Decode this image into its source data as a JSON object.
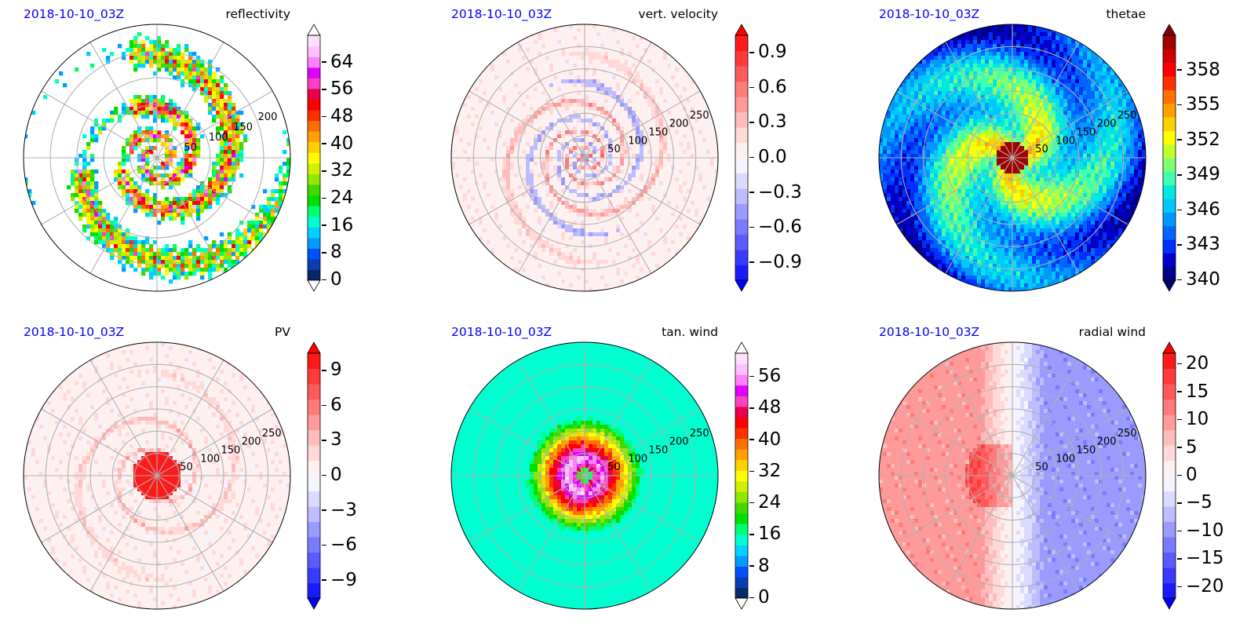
{
  "panels": [
    {
      "date": "2018-10-10_03Z",
      "title": "reflectivity",
      "kind": "reflectivity",
      "colorbar": {
        "vmin": 0,
        "vmax": 72,
        "ticks": [
          "0",
          "8",
          "16",
          "24",
          "32",
          "40",
          "48",
          "56",
          "64"
        ],
        "tick_values": [
          0,
          8,
          16,
          24,
          32,
          40,
          48,
          56,
          64
        ],
        "colors": [
          "#06286a",
          "#0a3cb4",
          "#0050ff",
          "#009cff",
          "#00d0ff",
          "#00ffd0",
          "#00ff70",
          "#00e000",
          "#40d800",
          "#90e800",
          "#d0f000",
          "#ffff00",
          "#ffd000",
          "#ffa000",
          "#ff7000",
          "#ff3000",
          "#ff0000",
          "#e8004a",
          "#ff40c0",
          "#e000ff",
          "#ff80ff",
          "#ffc0ff",
          "#ffe0ff"
        ],
        "extend_colors": {
          "low": "#ffffff",
          "high": "#ffffff"
        }
      },
      "radial_labels": [
        "50",
        "100",
        "150",
        "200"
      ]
    },
    {
      "date": "2018-10-10_03Z",
      "title": "vert. velocity",
      "kind": "vertvel",
      "colorbar": {
        "vmin": -1.05,
        "vmax": 1.05,
        "ticks": [
          "−0.9",
          "−0.6",
          "−0.3",
          "0.0",
          "0.3",
          "0.6",
          "0.9"
        ],
        "tick_values": [
          -0.9,
          -0.6,
          -0.3,
          0,
          0.3,
          0.6,
          0.9
        ],
        "colors": [
          "#1a1aff",
          "#3a3aff",
          "#5a5aff",
          "#7a7aff",
          "#9a9aff",
          "#bcbcff",
          "#dadaff",
          "#f4f4ff",
          "#fff0f0",
          "#ffd8d8",
          "#ffbcbc",
          "#ff9a9a",
          "#ff7a7a",
          "#ff5a5a",
          "#ff3a3a",
          "#ff1a1a"
        ],
        "extend_colors": {
          "low": "#0000ff",
          "high": "#ff0000"
        }
      },
      "radial_labels": [
        "50",
        "100",
        "150",
        "200",
        "250"
      ]
    },
    {
      "date": "2018-10-10_03Z",
      "title": "thetae",
      "kind": "thetae",
      "colorbar": {
        "vmin": 340,
        "vmax": 361,
        "ticks": [
          "340",
          "343",
          "346",
          "349",
          "352",
          "355",
          "358"
        ],
        "tick_values": [
          340,
          343,
          346,
          349,
          352,
          355,
          358
        ],
        "colors": [
          "#00008c",
          "#0000c8",
          "#0030ff",
          "#0064ff",
          "#0098ff",
          "#00c8ff",
          "#00e8e0",
          "#40ffb0",
          "#80ff70",
          "#c0ff30",
          "#ffff00",
          "#ffd000",
          "#ffa000",
          "#ff7000",
          "#ff3000",
          "#ff0000",
          "#d00000",
          "#a00000"
        ],
        "extend_colors": {
          "low": "#00006a",
          "high": "#800000"
        }
      },
      "radial_labels": [
        "50",
        "100",
        "150",
        "200",
        "250"
      ]
    },
    {
      "date": "2018-10-10_03Z",
      "title": "PV",
      "kind": "pv",
      "colorbar": {
        "vmin": -10.5,
        "vmax": 10.5,
        "ticks": [
          "−9",
          "−6",
          "−3",
          "0",
          "3",
          "6",
          "9"
        ],
        "tick_values": [
          -9,
          -6,
          -3,
          0,
          3,
          6,
          9
        ],
        "colors": [
          "#1a1aff",
          "#3a3aff",
          "#5a5aff",
          "#7a7aff",
          "#9a9aff",
          "#bcbcff",
          "#dadaff",
          "#f4f4ff",
          "#fff0f0",
          "#ffd8d8",
          "#ffbcbc",
          "#ff9a9a",
          "#ff7a7a",
          "#ff5a5a",
          "#ff3a3a",
          "#ff1a1a"
        ],
        "extend_colors": {
          "low": "#0000ff",
          "high": "#ff0000"
        }
      },
      "radial_labels": [
        "50",
        "100",
        "150",
        "200",
        "250"
      ]
    },
    {
      "date": "2018-10-10_03Z",
      "title": "tan. wind",
      "kind": "tanwind",
      "colorbar": {
        "vmin": 0,
        "vmax": 62,
        "ticks": [
          "0",
          "8",
          "16",
          "24",
          "32",
          "40",
          "48",
          "56"
        ],
        "tick_values": [
          0,
          8,
          16,
          24,
          32,
          40,
          48,
          56
        ],
        "colors": [
          "#06286a",
          "#0a3cb4",
          "#0050ff",
          "#009cff",
          "#00d0ff",
          "#00ffd0",
          "#00ff70",
          "#00e000",
          "#40d800",
          "#90e800",
          "#d0f000",
          "#ffff00",
          "#ffd000",
          "#ffa000",
          "#ff7000",
          "#ff3000",
          "#ff0000",
          "#e8004a",
          "#ff40c0",
          "#e000ff",
          "#ff80ff",
          "#ffc0ff",
          "#ffe0ff"
        ],
        "extend_colors": {
          "low": "#ffffff",
          "high": "#ffffff"
        }
      },
      "radial_labels": [
        "50",
        "100",
        "150",
        "200",
        "250"
      ]
    },
    {
      "date": "2018-10-10_03Z",
      "title": "radial wind",
      "kind": "radwind",
      "colorbar": {
        "vmin": -22,
        "vmax": 22,
        "ticks": [
          "−20",
          "−15",
          "−10",
          "−5",
          "0",
          "5",
          "10",
          "15",
          "20"
        ],
        "tick_values": [
          -20,
          -15,
          -10,
          -5,
          0,
          5,
          10,
          15,
          20
        ],
        "colors": [
          "#1a1aff",
          "#3a3aff",
          "#5a5aff",
          "#7a7aff",
          "#9a9aff",
          "#bcbcff",
          "#dadaff",
          "#f4f4ff",
          "#fff0f0",
          "#ffd8d8",
          "#ffbcbc",
          "#ff9a9a",
          "#ff7a7a",
          "#ff5a5a",
          "#ff3a3a",
          "#ff1a1a"
        ],
        "extend_colors": {
          "low": "#0000ff",
          "high": "#ff0000"
        }
      },
      "radial_labels": [
        "50",
        "100",
        "150",
        "200",
        "250"
      ]
    }
  ],
  "chart_data": [
    {
      "type": "heatmap",
      "projection": "polar",
      "title": "reflectivity",
      "subtitle": "2018-10-10_03Z",
      "radial_ticks": [
        50,
        100,
        150,
        200
      ],
      "colorbar_range": [
        0,
        72
      ],
      "colorbar_ticks": [
        0,
        8,
        16,
        24,
        32,
        40,
        48,
        56,
        64
      ],
      "grid": true
    },
    {
      "type": "heatmap",
      "projection": "polar",
      "title": "vert. velocity",
      "subtitle": "2018-10-10_03Z",
      "radial_ticks": [
        50,
        100,
        150,
        200,
        250
      ],
      "colorbar_range": [
        -1.05,
        1.05
      ],
      "colorbar_ticks": [
        -0.9,
        -0.6,
        -0.3,
        0,
        0.3,
        0.6,
        0.9
      ],
      "grid": true
    },
    {
      "type": "heatmap",
      "projection": "polar",
      "title": "thetae",
      "subtitle": "2018-10-10_03Z",
      "radial_ticks": [
        50,
        100,
        150,
        200,
        250
      ],
      "colorbar_range": [
        340,
        361
      ],
      "colorbar_ticks": [
        340,
        343,
        346,
        349,
        352,
        355,
        358
      ],
      "grid": true
    },
    {
      "type": "heatmap",
      "projection": "polar",
      "title": "PV",
      "subtitle": "2018-10-10_03Z",
      "radial_ticks": [
        50,
        100,
        150,
        200,
        250
      ],
      "colorbar_range": [
        -10.5,
        10.5
      ],
      "colorbar_ticks": [
        -9,
        -6,
        -3,
        0,
        3,
        6,
        9
      ],
      "grid": true
    },
    {
      "type": "heatmap",
      "projection": "polar",
      "title": "tan. wind",
      "subtitle": "2018-10-10_03Z",
      "radial_ticks": [
        50,
        100,
        150,
        200,
        250
      ],
      "colorbar_range": [
        0,
        62
      ],
      "colorbar_ticks": [
        0,
        8,
        16,
        24,
        32,
        40,
        48,
        56
      ],
      "grid": true
    },
    {
      "type": "heatmap",
      "projection": "polar",
      "title": "radial wind",
      "subtitle": "2018-10-10_03Z",
      "radial_ticks": [
        50,
        100,
        150,
        200,
        250
      ],
      "colorbar_range": [
        -22,
        22
      ],
      "colorbar_ticks": [
        -20,
        -15,
        -10,
        -5,
        0,
        5,
        10,
        15,
        20
      ],
      "grid": true
    }
  ]
}
